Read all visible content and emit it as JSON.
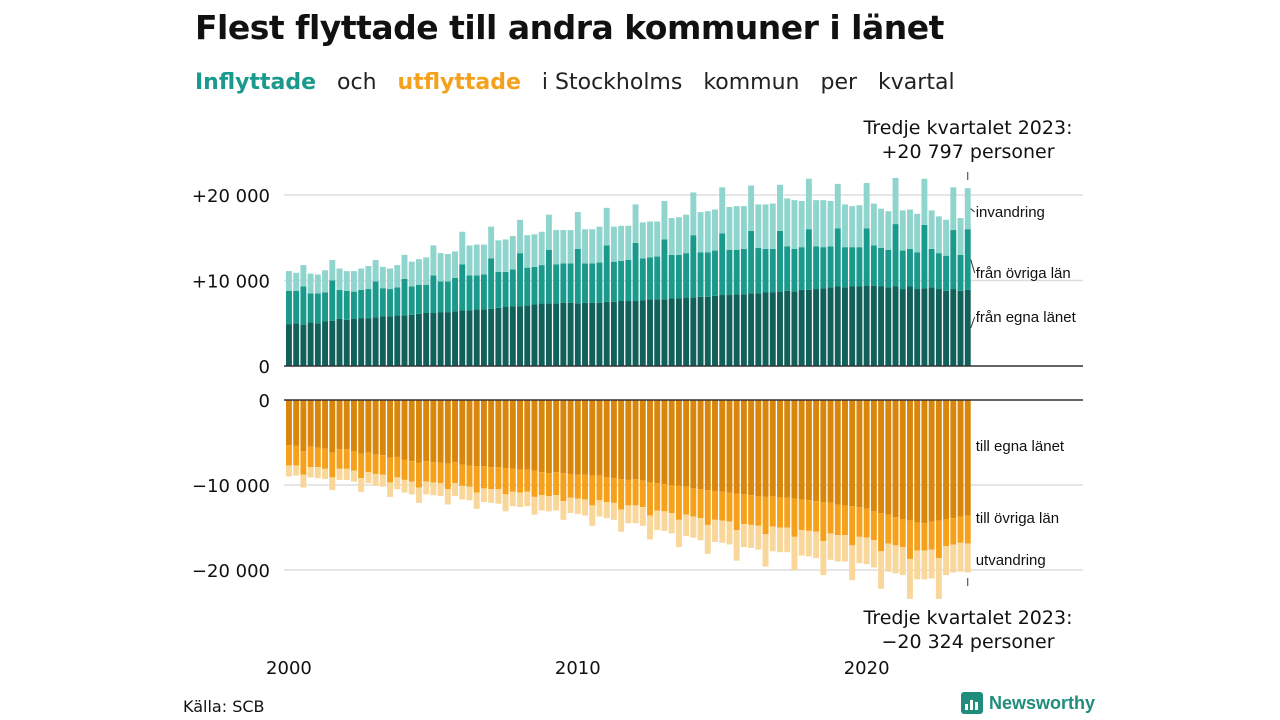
{
  "title": "Flest flyttade till andra kommuner i länet",
  "subtitle": {
    "in_word": "Inflyttade",
    "and": "och",
    "out_word": "utflyttade",
    "rest_1": "i Stockholms",
    "rest_2": "kommun",
    "rest_3": "per",
    "rest_4": "kvartal"
  },
  "annotation_top": {
    "line1": "Tredje kvartalet 2023:",
    "line2": "+20 797 personer"
  },
  "annotation_bottom": {
    "line1": "Tredje kvartalet 2023:",
    "line2": "−20 324 personer"
  },
  "source": "Källa: SCB",
  "brand": "Newsworthy",
  "colors": {
    "in_lan": "#12605a",
    "in_ovriga": "#1a9a8c",
    "in_invandring": "#8fd5cd",
    "out_lan": "#d9860c",
    "out_ovriga": "#f5a11c",
    "out_utvandring": "#f9d79a",
    "grid": "#dddddd",
    "axis": "#333333"
  },
  "chart_data": {
    "type": "bar",
    "stacked": true,
    "x_unit": "kvartal",
    "x_start": "2000 Q1",
    "x_end": "2023 Q3",
    "x_ticks": [
      "2000",
      "2010",
      "2020"
    ],
    "y_ticks_in": [
      "0",
      "+10 000",
      "+20 000"
    ],
    "y_ticks_out": [
      "0",
      "−10 000",
      "−20 000"
    ],
    "ylim_in": [
      0,
      20000
    ],
    "ylim_out": [
      -20000,
      0
    ],
    "grid": true,
    "series": [
      {
        "name": "från egna länet",
        "group": "in",
        "values": [
          4900,
          5000,
          4800,
          5100,
          5000,
          5200,
          5300,
          5500,
          5400,
          5500,
          5600,
          5600,
          5700,
          5800,
          5800,
          5900,
          5900,
          6000,
          6100,
          6200,
          6200,
          6300,
          6300,
          6400,
          6500,
          6500,
          6600,
          6600,
          6700,
          6800,
          6900,
          7000,
          7000,
          7100,
          7200,
          7300,
          7300,
          7300,
          7400,
          7400,
          7300,
          7400,
          7400,
          7400,
          7500,
          7500,
          7600,
          7600,
          7600,
          7700,
          7800,
          7800,
          7800,
          7900,
          7900,
          8000,
          8000,
          8100,
          8100,
          8200,
          8300,
          8300,
          8400,
          8400,
          8500,
          8500,
          8600,
          8600,
          8700,
          8800,
          8700,
          8900,
          8900,
          9000,
          9100,
          9200,
          9300,
          9200,
          9300,
          9300,
          9400,
          9400,
          9300,
          9200,
          9300,
          9000,
          9300,
          9000,
          9100,
          9200,
          9000,
          8800,
          9000,
          8800,
          8900
        ]
      },
      {
        "name": "från övriga län",
        "group": "in",
        "values": [
          3900,
          3800,
          4500,
          3400,
          3500,
          3400,
          4700,
          3400,
          3400,
          3200,
          3300,
          3400,
          4200,
          3300,
          3200,
          3300,
          4300,
          3300,
          3400,
          3300,
          4400,
          3600,
          3600,
          3900,
          5400,
          4100,
          4000,
          4100,
          5900,
          4200,
          4100,
          4300,
          6200,
          4400,
          4400,
          4500,
          6300,
          4600,
          4600,
          4600,
          6400,
          4600,
          4600,
          4700,
          6600,
          4700,
          4700,
          4800,
          6800,
          4900,
          4900,
          5000,
          7000,
          5100,
          5100,
          5200,
          7300,
          5200,
          5200,
          5300,
          7200,
          5300,
          5200,
          5300,
          7300,
          5300,
          5100,
          5100,
          7100,
          5200,
          5000,
          5000,
          7100,
          5000,
          4800,
          4800,
          6800,
          4700,
          4600,
          4600,
          6700,
          4700,
          4500,
          4400,
          7300,
          4500,
          4400,
          4300,
          7400,
          4500,
          4200,
          4100,
          6900,
          4200,
          7100
        ]
      },
      {
        "name": "invandring",
        "group": "in",
        "values": [
          2300,
          2100,
          2500,
          2300,
          2200,
          2600,
          2400,
          2500,
          2300,
          2400,
          2500,
          2700,
          2500,
          2500,
          2400,
          2600,
          2800,
          2900,
          3000,
          3200,
          3500,
          3300,
          3200,
          3100,
          3800,
          3500,
          3600,
          3500,
          3700,
          3700,
          3800,
          3900,
          3900,
          3800,
          3800,
          3900,
          4100,
          4000,
          3900,
          3900,
          4300,
          4000,
          4000,
          4200,
          4400,
          4100,
          4100,
          4000,
          4500,
          4200,
          4200,
          4100,
          4500,
          4300,
          4400,
          4500,
          5000,
          4700,
          4800,
          4800,
          5400,
          5000,
          5100,
          5000,
          5300,
          5100,
          5200,
          5300,
          5400,
          5600,
          5700,
          5400,
          5900,
          5400,
          5500,
          5300,
          5200,
          5000,
          4800,
          4900,
          5300,
          4900,
          4600,
          4500,
          5400,
          4700,
          4600,
          4500,
          5400,
          4500,
          4300,
          4200,
          5000,
          4300,
          4800
        ]
      },
      {
        "name": "till egna länet",
        "group": "out",
        "values": [
          -5300,
          -5400,
          -6000,
          -5500,
          -5600,
          -5700,
          -6200,
          -5800,
          -5800,
          -6000,
          -6300,
          -6200,
          -6400,
          -6500,
          -6800,
          -6700,
          -7000,
          -7200,
          -7400,
          -7200,
          -7300,
          -7400,
          -7500,
          -7300,
          -7600,
          -7700,
          -7800,
          -7800,
          -7900,
          -7900,
          -8000,
          -8100,
          -8200,
          -8200,
          -8300,
          -8500,
          -8600,
          -8500,
          -8600,
          -8700,
          -8800,
          -8800,
          -8900,
          -8900,
          -9100,
          -9200,
          -9300,
          -9400,
          -9300,
          -9500,
          -9700,
          -9800,
          -9900,
          -10000,
          -10100,
          -10200,
          -10400,
          -10500,
          -10600,
          -10700,
          -10800,
          -10900,
          -11000,
          -11100,
          -11200,
          -11300,
          -11400,
          -11300,
          -11500,
          -11500,
          -11600,
          -11700,
          -11800,
          -11900,
          -12000,
          -12100,
          -12300,
          -12400,
          -12500,
          -12600,
          -12800,
          -13100,
          -13300,
          -13500,
          -13800,
          -14000,
          -14200,
          -14400,
          -14500,
          -14300,
          -14200,
          -14000,
          -13900,
          -13700,
          -13600
        ]
      },
      {
        "name": "till övriga län",
        "group": "out",
        "values": [
          -2400,
          -2300,
          -2800,
          -2400,
          -2300,
          -2400,
          -2900,
          -2300,
          -2300,
          -2300,
          -2900,
          -2300,
          -2300,
          -2300,
          -2900,
          -2400,
          -2400,
          -2400,
          -2900,
          -2400,
          -2400,
          -2400,
          -3000,
          -2500,
          -2500,
          -2500,
          -3100,
          -2600,
          -2600,
          -2600,
          -3100,
          -2700,
          -2700,
          -2600,
          -3100,
          -2700,
          -2700,
          -2700,
          -3300,
          -2800,
          -2800,
          -2900,
          -3500,
          -2900,
          -2900,
          -2900,
          -3600,
          -3000,
          -3100,
          -3100,
          -3900,
          -3200,
          -3200,
          -3300,
          -4000,
          -3300,
          -3300,
          -3400,
          -4100,
          -3400,
          -3400,
          -3400,
          -4300,
          -3500,
          -3500,
          -3500,
          -4400,
          -3600,
          -3500,
          -3500,
          -4500,
          -3600,
          -3600,
          -3600,
          -4600,
          -3600,
          -3600,
          -3500,
          -4600,
          -3500,
          -3400,
          -3400,
          -4500,
          -3400,
          -3300,
          -3300,
          -4500,
          -3300,
          -3200,
          -3300,
          -4400,
          -3200,
          -3100,
          -3100,
          -3300
        ]
      },
      {
        "name": "utvandring",
        "group": "out",
        "values": [
          -1300,
          -1200,
          -1500,
          -1200,
          -1300,
          -1200,
          -1500,
          -1300,
          -1300,
          -1300,
          -1600,
          -1300,
          -1400,
          -1400,
          -1700,
          -1400,
          -1500,
          -1500,
          -1800,
          -1500,
          -1500,
          -1500,
          -1800,
          -1500,
          -1600,
          -1600,
          -1900,
          -1600,
          -1600,
          -1700,
          -2000,
          -1700,
          -1700,
          -1700,
          -2100,
          -1800,
          -1800,
          -1800,
          -2200,
          -1800,
          -1800,
          -1900,
          -2400,
          -1900,
          -1900,
          -2000,
          -2600,
          -2100,
          -2100,
          -2200,
          -2800,
          -2300,
          -2300,
          -2400,
          -3200,
          -2500,
          -2500,
          -2600,
          -3400,
          -2600,
          -2600,
          -2700,
          -3600,
          -2700,
          -2700,
          -2800,
          -3800,
          -2900,
          -2900,
          -2900,
          -3900,
          -3000,
          -3000,
          -3100,
          -4000,
          -3100,
          -3100,
          -3100,
          -4100,
          -3100,
          -3100,
          -3200,
          -4400,
          -3300,
          -3300,
          -3300,
          -4700,
          -3400,
          -3400,
          -3400,
          -4800,
          -3400,
          -3300,
          -3400,
          -3400
        ]
      }
    ]
  }
}
